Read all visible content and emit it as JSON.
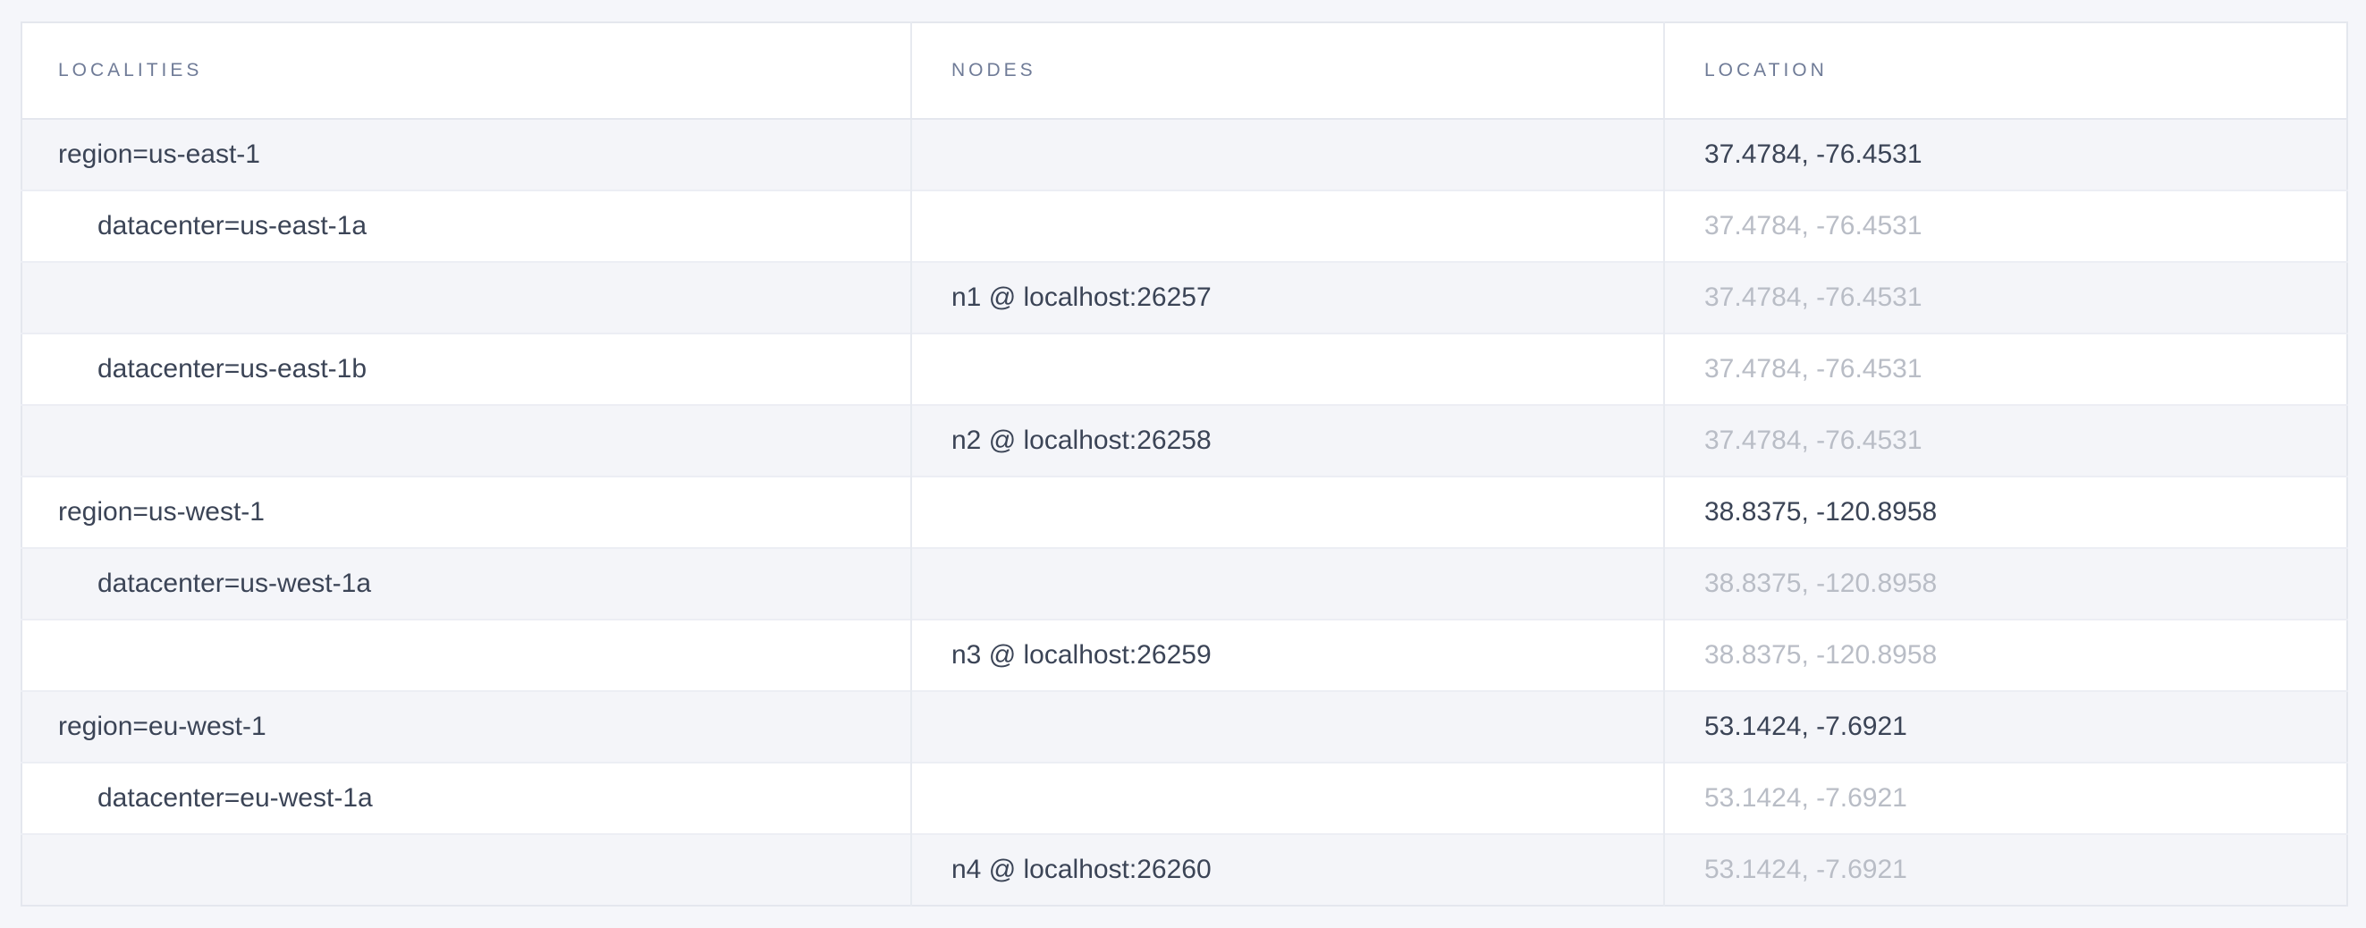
{
  "page": {
    "background_color": "#f5f6fa"
  },
  "table": {
    "columns": [
      {
        "id": "localities",
        "label": "LOCALITIES"
      },
      {
        "id": "nodes",
        "label": "NODES"
      },
      {
        "id": "location",
        "label": "LOCATION"
      }
    ],
    "rows": [
      {
        "locality": "region=us-east-1",
        "indent": 0,
        "node": "",
        "location": "37.4784, -76.4531",
        "location_muted": false
      },
      {
        "locality": "datacenter=us-east-1a",
        "indent": 1,
        "node": "",
        "location": "37.4784, -76.4531",
        "location_muted": true
      },
      {
        "locality": "",
        "indent": 0,
        "node": "n1 @ localhost:26257",
        "location": "37.4784, -76.4531",
        "location_muted": true
      },
      {
        "locality": "datacenter=us-east-1b",
        "indent": 1,
        "node": "",
        "location": "37.4784, -76.4531",
        "location_muted": true
      },
      {
        "locality": "",
        "indent": 0,
        "node": "n2 @ localhost:26258",
        "location": "37.4784, -76.4531",
        "location_muted": true
      },
      {
        "locality": "region=us-west-1",
        "indent": 0,
        "node": "",
        "location": "38.8375, -120.8958",
        "location_muted": false
      },
      {
        "locality": "datacenter=us-west-1a",
        "indent": 1,
        "node": "",
        "location": "38.8375, -120.8958",
        "location_muted": true
      },
      {
        "locality": "",
        "indent": 0,
        "node": "n3 @ localhost:26259",
        "location": "38.8375, -120.8958",
        "location_muted": true
      },
      {
        "locality": "region=eu-west-1",
        "indent": 0,
        "node": "",
        "location": "53.1424, -7.6921",
        "location_muted": false
      },
      {
        "locality": "datacenter=eu-west-1a",
        "indent": 1,
        "node": "",
        "location": "53.1424, -7.6921",
        "location_muted": true
      },
      {
        "locality": "",
        "indent": 0,
        "node": "n4 @ localhost:26260",
        "location": "53.1424, -7.6921",
        "location_muted": true
      }
    ]
  },
  "colors": {
    "text_dark": "#3b4456",
    "text_muted": "#b9bdc6",
    "header_text": "#6f7b97",
    "row_stripe": "#f4f5f9",
    "border": "#e4e7ee"
  }
}
